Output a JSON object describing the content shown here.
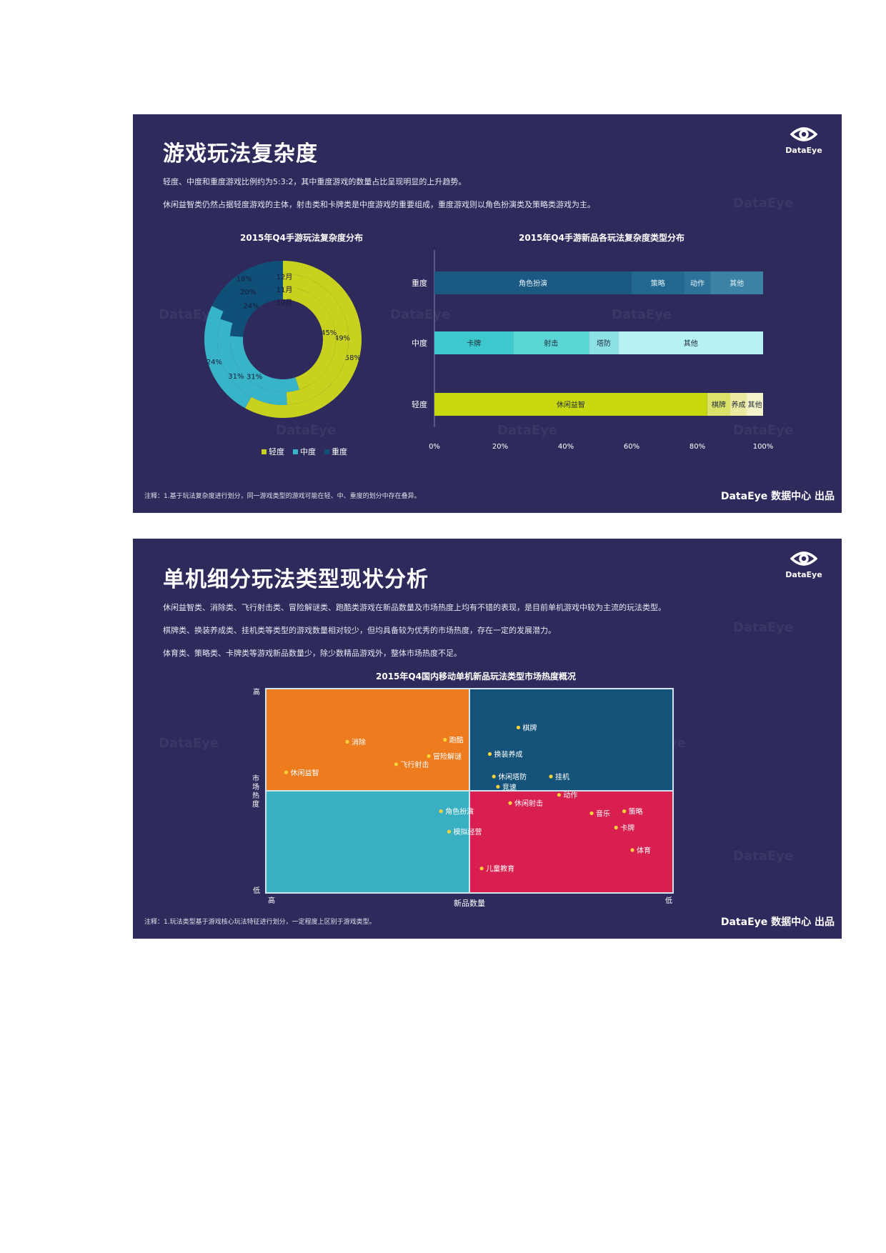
{
  "slide1": {
    "title": "游戏玩法复杂度",
    "desc1": "轻度、中度和重度游戏比例约为5:3:2，其中重度游戏的数量占比呈现明显的上升趋势。",
    "desc2": "休闲益智类仍然占据轻度游戏的主体，射击类和卡牌类是中度游戏的重要组成，重度游戏则以角色扮演类及策略类游戏为主。",
    "logo_text": "DataEye",
    "watermark": "DataEye",
    "footnote": "注释：1.基于玩法复杂度进行划分，同一游戏类型的游戏可能在轻、中、重度的划分中存在叠异。",
    "source": "DataEye 数据中心 出品",
    "colors": {
      "light": "#c8d21e",
      "medium": "#38b4c8",
      "heavy": "#0f4f78",
      "bg": "#2f2a5c"
    },
    "chart_data": [
      {
        "type": "pie",
        "subtype": "donut",
        "title": "2015年Q4手游玩法复杂度分布",
        "rings": [
          "12月",
          "11月",
          "10月"
        ],
        "legend": [
          "轻度",
          "中度",
          "重度"
        ],
        "legend_placement": "bottom",
        "series": [
          {
            "name": "10月",
            "values": [
              58,
              24,
              18
            ]
          },
          {
            "name": "11月",
            "values": [
              49,
              31,
              20
            ]
          },
          {
            "name": "12月",
            "values": [
              45,
              31,
              24
            ]
          }
        ],
        "labels": {
          "light": [
            "58%",
            "49%",
            "45%"
          ],
          "medium": [
            "24%",
            "31%",
            "31%"
          ],
          "heavy": [
            "18%",
            "20%",
            "24%"
          ]
        }
      },
      {
        "type": "bar",
        "subtype": "stacked-horizontal-100",
        "title": "2015年Q4手游新品各玩法复杂度类型分布",
        "categories": [
          "重度",
          "中度",
          "轻度"
        ],
        "x_ticks": [
          "0%",
          "20%",
          "40%",
          "60%",
          "80%",
          "100%"
        ],
        "xlim": [
          0,
          100
        ],
        "rows": [
          {
            "name": "重度",
            "segments": [
              {
                "label": "角色扮演",
                "value": 60,
                "color": "#1a5a82"
              },
              {
                "label": "策略",
                "value": 16,
                "color": "#23688f"
              },
              {
                "label": "动作",
                "value": 8,
                "color": "#2d7399"
              },
              {
                "label": "其他",
                "value": 16,
                "color": "#3b82a6"
              }
            ]
          },
          {
            "name": "中度",
            "segments": [
              {
                "label": "卡牌",
                "value": 24,
                "color": "#3cc8cc"
              },
              {
                "label": "射击",
                "value": 23,
                "color": "#5ad5d5"
              },
              {
                "label": "塔防",
                "value": 9,
                "color": "#8ce2e4"
              },
              {
                "label": "其他",
                "value": 44,
                "color": "#b6f1f3"
              }
            ]
          },
          {
            "name": "轻度",
            "segments": [
              {
                "label": "休闲益智",
                "value": 83,
                "color": "#c8d80e"
              },
              {
                "label": "棋牌",
                "value": 7,
                "color": "#dbe26a"
              },
              {
                "label": "养成",
                "value": 5,
                "color": "#eaeaa0"
              },
              {
                "label": "其他",
                "value": 5,
                "color": "#f4f2c8"
              }
            ]
          }
        ]
      }
    ]
  },
  "slide2": {
    "title": "单机细分玩法类型现状分析",
    "desc1": "休闲益智类、消除类、飞行射击类、冒险解谜类、跑酷类游戏在新品数量及市场热度上均有不错的表现，是目前单机游戏中较为主流的玩法类型。",
    "desc2": "棋牌类、换装养成类、挂机类等类型的游戏数量相对较少，但均具备较为优秀的市场热度，存在一定的发展潜力。",
    "desc3": "体育类、策略类、卡牌类等游戏新品数量少，除少数精品游戏外，整体市场热度不足。",
    "logo_text": "DataEye",
    "watermark": "DataEye",
    "footnote": "注释：1.玩法类型基于游戏核心玩法特征进行划分，一定程度上区别于游戏类型。",
    "source": "DataEye 数据中心 出品",
    "chart_data": {
      "type": "scatter",
      "subtype": "quadrant",
      "title": "2015年Q4国内移动单机新品玩法类型市场热度概况",
      "xlabel": "新品数量",
      "ylabel": "市场热度",
      "x_ends": [
        "高",
        "低"
      ],
      "y_ends": [
        "高",
        "低"
      ],
      "xlim": [
        0,
        100
      ],
      "ylim": [
        0,
        100
      ],
      "quadrant_colors": {
        "top_left": "#ee7b1e",
        "top_right": "#14527a",
        "bottom_left": "#38afc3",
        "bottom_right": "#d81f4f"
      },
      "points": [
        {
          "label": "休闲益智",
          "x": 5,
          "y": 59
        },
        {
          "label": "消除",
          "x": 20,
          "y": 74
        },
        {
          "label": "跑酷",
          "x": 44,
          "y": 75
        },
        {
          "label": "冒险解谜",
          "x": 40,
          "y": 67
        },
        {
          "label": "飞行射击",
          "x": 32,
          "y": 63
        },
        {
          "label": "棋牌",
          "x": 62,
          "y": 81
        },
        {
          "label": "换装养成",
          "x": 55,
          "y": 68
        },
        {
          "label": "休闲塔防",
          "x": 56,
          "y": 57
        },
        {
          "label": "竞速",
          "x": 57,
          "y": 52
        },
        {
          "label": "挂机",
          "x": 70,
          "y": 57
        },
        {
          "label": "动作",
          "x": 72,
          "y": 48
        },
        {
          "label": "休闲射击",
          "x": 60,
          "y": 44
        },
        {
          "label": "角色扮演",
          "x": 43,
          "y": 40
        },
        {
          "label": "模拟经营",
          "x": 45,
          "y": 30
        },
        {
          "label": "音乐",
          "x": 80,
          "y": 39
        },
        {
          "label": "策略",
          "x": 88,
          "y": 40
        },
        {
          "label": "卡牌",
          "x": 86,
          "y": 32
        },
        {
          "label": "体育",
          "x": 90,
          "y": 21
        },
        {
          "label": "儿童教育",
          "x": 53,
          "y": 12
        }
      ]
    }
  }
}
